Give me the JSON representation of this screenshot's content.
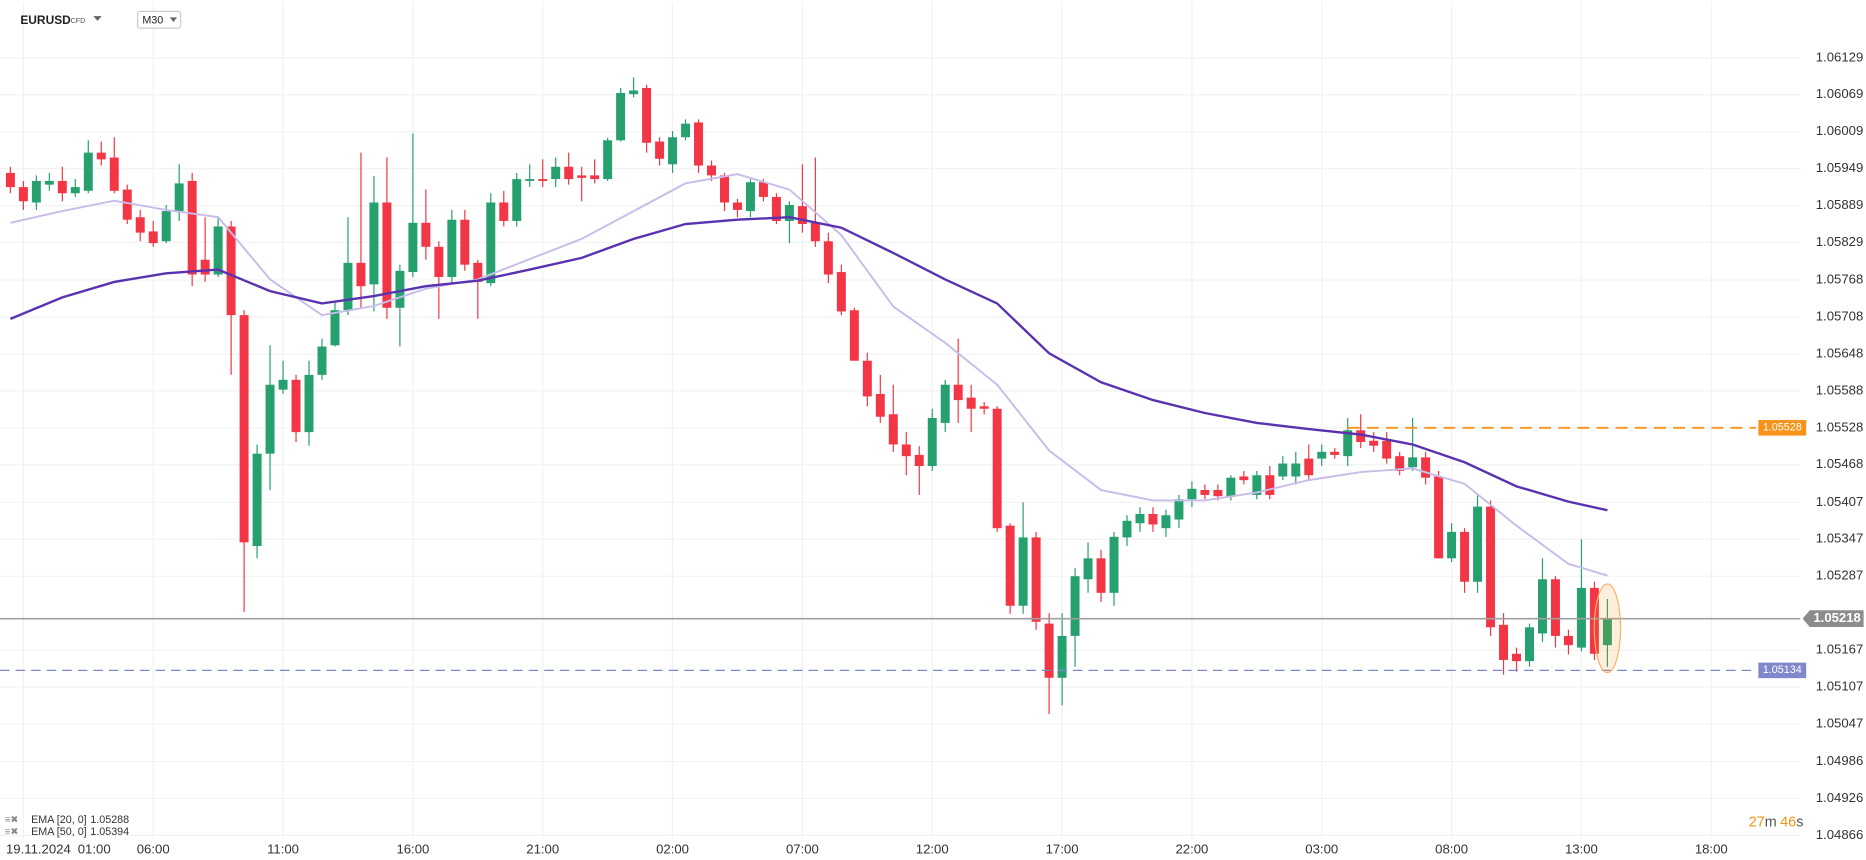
{
  "header": {
    "symbol": "EURUSD",
    "badge": "CFD",
    "timeframe": "M30"
  },
  "countdown": [
    "27",
    "m",
    "46",
    "s"
  ],
  "chart_data": {
    "type": "candlestick",
    "date_label": "19.11.2024",
    "up_color": "#26a06f",
    "down_color": "#f23645",
    "xlim": [
      -0.8,
      137.85
    ],
    "ylim": [
      1.0486,
      1.0622
    ],
    "grid": true,
    "xticks": [
      {
        "value": 1,
        "label": "01:00"
      },
      {
        "value": 11,
        "label": "06:00"
      },
      {
        "value": 21,
        "label": "11:00"
      },
      {
        "value": 31,
        "label": "16:00"
      },
      {
        "value": 41,
        "label": "21:00"
      },
      {
        "value": 51,
        "label": "02:00"
      },
      {
        "value": 61,
        "label": "07:00"
      },
      {
        "value": 71,
        "label": "12:00"
      },
      {
        "value": 81,
        "label": "17:00"
      },
      {
        "value": 91,
        "label": "22:00"
      },
      {
        "value": 101,
        "label": "03:00"
      },
      {
        "value": 111,
        "label": "08:00"
      },
      {
        "value": 121,
        "label": "13:00"
      },
      {
        "value": 131,
        "label": "18:00"
      }
    ],
    "yticks": [
      1.06129,
      1.06069,
      1.06009,
      1.05949,
      1.05889,
      1.05829,
      1.05768,
      1.05708,
      1.05648,
      1.05588,
      1.05528,
      1.05468,
      1.05407,
      1.05347,
      1.05287,
      1.05167,
      1.05107,
      1.05047,
      1.04986,
      1.04926,
      1.04866
    ],
    "open": [
      1.05942,
      1.05919,
      1.05894,
      1.05923,
      1.05929,
      1.05909,
      1.05913,
      1.05975,
      1.05967,
      1.05915,
      1.0587,
      1.05847,
      1.05831,
      1.0588,
      1.05929,
      1.05801,
      1.05777,
      1.05855,
      1.05711,
      1.05336,
      1.05486,
      1.0559,
      1.05606,
      1.05521,
      1.05614,
      1.05662,
      1.05719,
      1.05796,
      1.05761,
      1.05894,
      1.05723,
      1.05781,
      1.05861,
      1.05822,
      1.05773,
      1.05866,
      1.05796,
      1.05763,
      1.05894,
      1.05864,
      1.05929,
      1.05932,
      1.05932,
      1.05952,
      1.05938,
      1.05938,
      1.05932,
      1.05995,
      1.0607,
      1.0608,
      1.05993,
      1.05956,
      1.06,
      1.06024,
      1.05954,
      1.05938,
      1.05894,
      1.0588,
      1.05927,
      1.05903,
      1.05864,
      1.05888,
      1.05861,
      1.05831,
      1.05781,
      1.05719,
      1.05637,
      1.05583,
      1.0555,
      1.05501,
      1.05484,
      1.05466,
      1.05536,
      1.05598,
      1.05577,
      1.05563,
      1.05559,
      1.05369,
      1.05239,
      1.0535,
      1.0521,
      1.05122,
      1.0519,
      1.05282,
      1.05316,
      1.0526,
      1.0535,
      1.05373,
      1.05388,
      1.05365,
      1.05379,
      1.05412,
      1.05427,
      1.05427,
      1.05416,
      1.05449,
      1.05419,
      1.05451,
      1.05449,
      1.05449,
      1.05478,
      1.05478,
      1.05489,
      1.05482,
      1.05524,
      1.05507,
      1.05507,
      1.05482,
      1.05464,
      1.0548,
      1.05449,
      1.05316,
      1.05359,
      1.05278,
      1.054,
      1.05208,
      1.05161,
      1.05149,
      1.05194,
      1.05282,
      1.0519,
      1.05171,
      1.05268,
      1.05175
    ],
    "high": [
      1.05952,
      1.05929,
      1.05938,
      1.05942,
      1.05952,
      1.05932,
      1.05995,
      1.05993,
      1.06,
      1.05923,
      1.05882,
      1.05864,
      1.0589,
      1.05956,
      1.05942,
      1.0587,
      1.0587,
      1.05864,
      1.05719,
      1.05501,
      1.05662,
      1.05637,
      1.05614,
      1.05637,
      1.05673,
      1.05733,
      1.0587,
      1.05975,
      1.05937,
      1.05967,
      1.05793,
      1.06006,
      1.05915,
      1.05831,
      1.05882,
      1.05882,
      1.05801,
      1.05909,
      1.05913,
      1.05942,
      1.05956,
      1.05964,
      1.05967,
      1.05975,
      1.05952,
      1.05964,
      1.05999,
      1.0608,
      1.06097,
      1.06085,
      1.06,
      1.0601,
      1.06029,
      1.06029,
      1.05962,
      1.05942,
      1.059,
      1.05932,
      1.05932,
      1.05909,
      1.05896,
      1.05956,
      1.05967,
      1.05845,
      1.05793,
      1.05723,
      1.0565,
      1.05614,
      1.05598,
      1.05521,
      1.05498,
      1.05559,
      1.05606,
      1.05673,
      1.05598,
      1.0557,
      1.05563,
      1.05373,
      1.05407,
      1.05359,
      1.05227,
      1.05227,
      1.053,
      1.05342,
      1.0533,
      1.05359,
      1.05386,
      1.05399,
      1.05399,
      1.05395,
      1.05419,
      1.05441,
      1.05436,
      1.05436,
      1.05451,
      1.05458,
      1.05458,
      1.05466,
      1.05482,
      1.05489,
      1.05501,
      1.05501,
      1.05495,
      1.05544,
      1.0555,
      1.05521,
      1.05521,
      1.05489,
      1.05544,
      1.05489,
      1.05458,
      1.05373,
      1.05365,
      1.05419,
      1.0541,
      1.05227,
      1.05171,
      1.0521,
      1.05316,
      1.05287,
      1.052,
      1.05347,
      1.05278,
      1.0525
    ],
    "low": [
      1.05909,
      1.05882,
      1.05882,
      1.05913,
      1.05896,
      1.05903,
      1.05909,
      1.05954,
      1.05909,
      1.05859,
      1.05831,
      1.05822,
      1.05828,
      1.05864,
      1.05758,
      1.05765,
      1.05773,
      1.05614,
      1.05229,
      1.05316,
      1.05427,
      1.05583,
      1.05505,
      1.05499,
      1.05606,
      1.0566,
      1.05711,
      1.05723,
      1.05717,
      1.05705,
      1.0566,
      1.05773,
      1.05801,
      1.05705,
      1.05763,
      1.05783,
      1.05705,
      1.05758,
      1.05855,
      1.05855,
      1.05919,
      1.05919,
      1.05919,
      1.05923,
      1.05896,
      1.05925,
      1.05929,
      1.05993,
      1.06065,
      1.05975,
      1.05954,
      1.05942,
      1.05995,
      1.05942,
      1.05929,
      1.0588,
      1.0587,
      1.0587,
      1.05896,
      1.05859,
      1.05828,
      1.05845,
      1.05822,
      1.05763,
      1.05711,
      1.05637,
      1.05563,
      1.05536,
      1.05489,
      1.05451,
      1.05419,
      1.05458,
      1.05521,
      1.05536,
      1.05521,
      1.0555,
      1.05359,
      1.05226,
      1.05226,
      1.052,
      1.05063,
      1.05077,
      1.0514,
      1.0526,
      1.05245,
      1.05239,
      1.05336,
      1.05359,
      1.05359,
      1.05351,
      1.05365,
      1.05399,
      1.05412,
      1.0541,
      1.0541,
      1.05436,
      1.05412,
      1.05412,
      1.05443,
      1.05436,
      1.05443,
      1.05466,
      1.05478,
      1.05466,
      1.05495,
      1.05489,
      1.0547,
      1.05451,
      1.05458,
      1.05436,
      1.05316,
      1.0531,
      1.0526,
      1.0526,
      1.0519,
      1.05127,
      1.05132,
      1.0514,
      1.0518,
      1.05171,
      1.0516,
      1.05165,
      1.05151,
      1.0514
    ],
    "close": [
      1.05919,
      1.05896,
      1.05929,
      1.05929,
      1.05909,
      1.05919,
      1.05975,
      1.05964,
      1.05913,
      1.05866,
      1.05845,
      1.05828,
      1.0588,
      1.05925,
      1.05777,
      1.05777,
      1.05855,
      1.05711,
      1.05342,
      1.05486,
      1.05598,
      1.05606,
      1.05521,
      1.05614,
      1.0566,
      1.05719,
      1.05796,
      1.05758,
      1.05894,
      1.05723,
      1.05783,
      1.05861,
      1.05822,
      1.05773,
      1.05866,
      1.05793,
      1.05765,
      1.05894,
      1.05864,
      1.05932,
      1.05932,
      1.05929,
      1.05952,
      1.05932,
      1.05934,
      1.05932,
      1.05995,
      1.06072,
      1.06076,
      1.05991,
      1.05965,
      1.06,
      1.06022,
      1.05954,
      1.05938,
      1.05894,
      1.05882,
      1.05927,
      1.05903,
      1.05864,
      1.0589,
      1.05859,
      1.05831,
      1.05777,
      1.05717,
      1.05637,
      1.05579,
      1.05546,
      1.05501,
      1.05482,
      1.05466,
      1.05544,
      1.05598,
      1.05573,
      1.05559,
      1.05559,
      1.05365,
      1.05239,
      1.0535,
      1.05213,
      1.05122,
      1.0519,
      1.05287,
      1.05316,
      1.0526,
      1.05351,
      1.05377,
      1.05388,
      1.05371,
      1.05386,
      1.05412,
      1.05429,
      1.05419,
      1.05417,
      1.05447,
      1.05443,
      1.05451,
      1.05419,
      1.0547,
      1.0547,
      1.05451,
      1.05489,
      1.05484,
      1.05524,
      1.05505,
      1.05499,
      1.05478,
      1.05458,
      1.0548,
      1.05447,
      1.05316,
      1.05359,
      1.05278,
      1.054,
      1.05204,
      1.05151,
      1.05149,
      1.05204,
      1.05282,
      1.0519,
      1.05175,
      1.05268,
      1.05161,
      1.05218
    ],
    "series": [
      {
        "name": "EMA [20, 0]",
        "color": "#c8bce8",
        "x": [
          0,
          4,
          8,
          12,
          16,
          20,
          24,
          28,
          32,
          36,
          40,
          44,
          48,
          52,
          56,
          60,
          64,
          68,
          72,
          76,
          80,
          84,
          88,
          92,
          96,
          100,
          104,
          108,
          112,
          116,
          120,
          123
        ],
        "values": [
          1.05861,
          1.0588,
          1.05897,
          1.05882,
          1.0587,
          1.05769,
          1.05711,
          1.05726,
          1.05754,
          1.05769,
          1.05802,
          1.05835,
          1.0588,
          1.05925,
          1.0594,
          1.05915,
          1.05841,
          1.05725,
          1.05666,
          1.05598,
          1.05491,
          1.05427,
          1.0541,
          1.0541,
          1.05423,
          1.05443,
          1.05456,
          1.05462,
          1.05437,
          1.05369,
          1.05307,
          1.05288
        ]
      },
      {
        "name": "EMA [50, 0]",
        "color": "#5a32b0",
        "x": [
          0,
          4,
          8,
          12,
          16,
          20,
          24,
          28,
          32,
          36,
          40,
          44,
          48,
          52,
          56,
          60,
          64,
          68,
          72,
          76,
          80,
          84,
          88,
          92,
          96,
          100,
          104,
          108,
          112,
          116,
          120,
          123
        ],
        "values": [
          1.05705,
          1.0574,
          1.05765,
          1.05779,
          1.05785,
          1.0575,
          1.0573,
          1.05742,
          1.05758,
          1.05767,
          1.05785,
          1.05804,
          1.05835,
          1.05859,
          1.05866,
          1.0587,
          1.05853,
          1.05812,
          1.05769,
          1.0573,
          1.05649,
          1.05602,
          1.05573,
          1.05552,
          1.05536,
          1.05526,
          1.05517,
          1.05501,
          1.05472,
          1.05433,
          1.05408,
          1.05394
        ]
      }
    ],
    "levels": [
      {
        "value": 1.05528,
        "color": "#f7931a"
      },
      {
        "value": 1.05134,
        "color": "#8088cc"
      }
    ]
  }
}
